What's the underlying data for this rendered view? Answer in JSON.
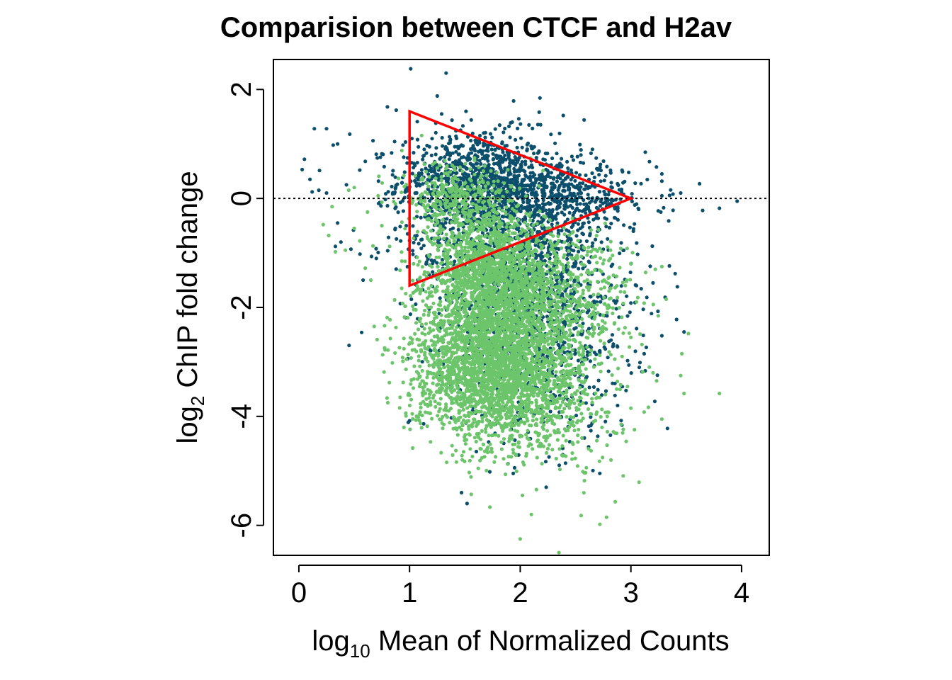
{
  "chart_data": {
    "type": "scatter",
    "title": "Comparision between CTCF and H2av",
    "xlabel_base": "log",
    "xlabel_sub": "10",
    "xlabel_rest": " Mean of Normalized Counts",
    "ylabel_base": "log",
    "ylabel_sub": "2",
    "ylabel_rest": " ChIP fold change",
    "xlim": [
      -0.23,
      4.25
    ],
    "ylim": [
      -6.55,
      2.55
    ],
    "xticks": [
      0,
      1,
      2,
      3,
      4
    ],
    "yticks": [
      -6,
      -4,
      -2,
      0,
      2
    ],
    "xtick_labels": [
      "0",
      "1",
      "2",
      "3",
      "4"
    ],
    "ytick_labels": [
      "-6",
      "-4",
      "-2",
      "0",
      "2"
    ],
    "grid": false,
    "legend": "none",
    "reference_line": {
      "y": 0,
      "style": "dotted",
      "color": "#000000"
    },
    "series": [
      {
        "color": "#0b4f6c",
        "clusters": [
          {
            "cx": 1.6,
            "cy": 0.3,
            "sx": 0.35,
            "sy": 0.45,
            "n": 900
          },
          {
            "cx": 1.9,
            "cy": -0.8,
            "sx": 0.45,
            "sy": 0.9,
            "n": 900
          },
          {
            "cx": 2.2,
            "cy": -2.4,
            "sx": 0.4,
            "sy": 1.0,
            "n": 800
          },
          {
            "cx": 2.4,
            "cy": 0.0,
            "sx": 0.4,
            "sy": 0.3,
            "n": 400
          }
        ],
        "points": [
          [
            1.01,
            2.38
          ],
          [
            1.33,
            2.3
          ],
          [
            1.25,
            1.88
          ],
          [
            0.8,
            1.68
          ],
          [
            0.88,
            1.62
          ],
          [
            1.29,
            1.55
          ],
          [
            1.51,
            1.6
          ],
          [
            1.07,
            1.41
          ],
          [
            0.14,
            1.28
          ],
          [
            0.25,
            1.28
          ],
          [
            0.46,
            1.18
          ],
          [
            0.35,
            1.0
          ],
          [
            0.31,
            0.98
          ],
          [
            0.05,
            0.72
          ],
          [
            0.03,
            0.53
          ],
          [
            0.1,
            0.35
          ],
          [
            0.18,
            0.15
          ],
          [
            0.12,
            0.12
          ],
          [
            0.25,
            0.1
          ],
          [
            0.43,
            0.25
          ],
          [
            0.55,
            0.52
          ],
          [
            0.6,
            0.68
          ],
          [
            0.67,
            1.06
          ],
          [
            0.75,
            0.82
          ],
          [
            2.92,
            0.52
          ],
          [
            2.57,
            0.65
          ],
          [
            3.28,
            0.45
          ],
          [
            3.28,
            0.05
          ],
          [
            3.45,
            0.1
          ],
          [
            3.62,
            0.27
          ],
          [
            3.38,
            0.08
          ],
          [
            3.8,
            -0.18
          ],
          [
            3.96,
            -0.05
          ],
          [
            3.07,
            -0.2
          ],
          [
            3.27,
            -0.25
          ],
          [
            3.05,
            -1.6
          ],
          [
            3.2,
            -1.55
          ],
          [
            3.28,
            -2.52
          ],
          [
            3.48,
            -2.45
          ],
          [
            3.12,
            -2.85
          ],
          [
            3.1,
            -3.18
          ],
          [
            2.65,
            -3.78
          ],
          [
            2.88,
            -3.8
          ],
          [
            2.62,
            -4.18
          ],
          [
            3.33,
            -4.22
          ],
          [
            1.0,
            -4.08
          ],
          [
            1.47,
            -5.4
          ],
          [
            1.52,
            -5.6
          ],
          [
            0.38,
            -0.8
          ],
          [
            0.47,
            -0.93
          ],
          [
            0.58,
            -1.5
          ],
          [
            0.35,
            -0.45
          ],
          [
            0.33,
            -0.88
          ],
          [
            0.7,
            -1.1
          ],
          [
            2.82,
            -2.6
          ],
          [
            3.0,
            -1.92
          ],
          [
            3.42,
            -1.62
          ],
          [
            3.4,
            -1.38
          ]
        ]
      },
      {
        "color": "#6cc56a",
        "clusters": [
          {
            "cx": 1.7,
            "cy": -1.3,
            "sx": 0.25,
            "sy": 0.6,
            "n": 1200
          },
          {
            "cx": 1.8,
            "cy": -2.6,
            "sx": 0.35,
            "sy": 0.8,
            "n": 2000
          },
          {
            "cx": 1.6,
            "cy": -3.3,
            "sx": 0.3,
            "sy": 0.5,
            "n": 700
          },
          {
            "cx": 2.1,
            "cy": -3.7,
            "sx": 0.4,
            "sy": 0.6,
            "n": 600
          },
          {
            "cx": 2.4,
            "cy": -1.9,
            "sx": 0.3,
            "sy": 0.7,
            "n": 500
          },
          {
            "cx": 1.4,
            "cy": 0.0,
            "sx": 0.25,
            "sy": 0.3,
            "n": 300
          }
        ],
        "points": [
          [
            0.3,
            -0.15
          ],
          [
            0.22,
            -0.48
          ],
          [
            0.27,
            -0.68
          ],
          [
            0.33,
            -0.98
          ],
          [
            0.42,
            -0.95
          ],
          [
            0.5,
            -0.55
          ],
          [
            0.55,
            -0.78
          ],
          [
            0.6,
            -1.28
          ],
          [
            0.65,
            -1.5
          ],
          [
            0.45,
            0.15
          ],
          [
            0.5,
            0.2
          ],
          [
            0.62,
            -0.25
          ],
          [
            0.75,
            -0.5
          ],
          [
            0.82,
            -0.88
          ],
          [
            0.93,
            0.88
          ],
          [
            2.0,
            -6.25
          ],
          [
            2.1,
            -5.8
          ],
          [
            2.02,
            -5.45
          ],
          [
            2.35,
            -6.5
          ],
          [
            2.55,
            -5.82
          ],
          [
            2.72,
            -5.98
          ],
          [
            2.78,
            -5.85
          ],
          [
            2.58,
            -5.18
          ],
          [
            2.82,
            -4.8
          ],
          [
            3.0,
            -3.85
          ],
          [
            3.12,
            -3.92
          ],
          [
            3.28,
            -4.05
          ],
          [
            3.48,
            -3.58
          ],
          [
            3.8,
            -3.58
          ],
          [
            3.52,
            -2.48
          ],
          [
            3.45,
            -3.25
          ],
          [
            3.2,
            -3.2
          ],
          [
            3.28,
            -1.25
          ],
          [
            3.22,
            -1.3
          ],
          [
            3.0,
            -1.2
          ],
          [
            2.95,
            -1.6
          ],
          [
            3.05,
            -1.9
          ],
          [
            2.85,
            -2.3
          ],
          [
            3.46,
            -2.85
          ],
          [
            3.0,
            -2.55
          ],
          [
            2.92,
            -2.9
          ],
          [
            3.1,
            -2.68
          ]
        ]
      }
    ],
    "annotation": {
      "type": "triangle",
      "color": "#ff0000",
      "vertices": [
        [
          1.0,
          1.6
        ],
        [
          3.0,
          0.0
        ],
        [
          1.0,
          -1.6
        ]
      ]
    }
  }
}
